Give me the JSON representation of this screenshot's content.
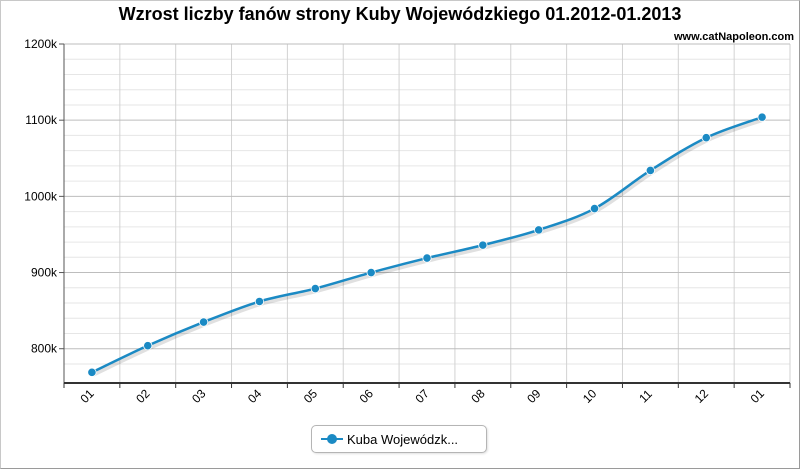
{
  "chart_data": {
    "type": "line",
    "title": "Wzrost liczby fanów strony Kuby Wojewódzkiego 01.2012-01.2013",
    "watermark": "www.catNapoleon.com",
    "xlabel": "",
    "ylabel": "",
    "categories": [
      "01",
      "02",
      "03",
      "04",
      "05",
      "06",
      "07",
      "08",
      "09",
      "10",
      "11",
      "12",
      "01"
    ],
    "y_ticks": [
      800000,
      900000,
      1000000,
      1100000,
      1200000
    ],
    "y_tick_labels": [
      "800k",
      "900k",
      "1000k",
      "1100k",
      "1200k"
    ],
    "ylim": [
      755000,
      1200000
    ],
    "grid": true,
    "legend_position": "bottom-center",
    "series": [
      {
        "name": "Kuba Wojewódzk...",
        "color": "#1b8ac4",
        "values": [
          769000,
          804000,
          835000,
          862000,
          879000,
          900000,
          919000,
          936000,
          956000,
          984000,
          1034000,
          1077000,
          1104000
        ]
      }
    ]
  }
}
